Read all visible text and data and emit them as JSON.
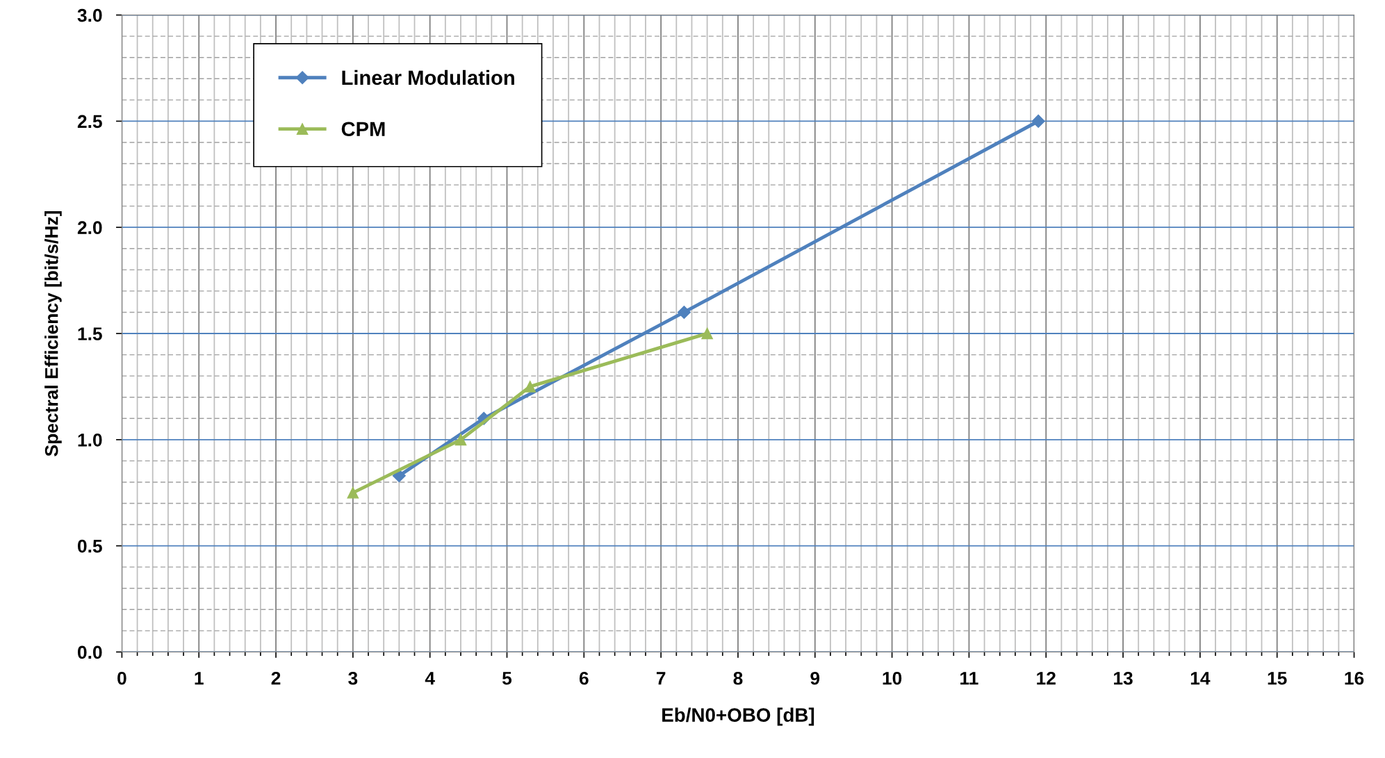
{
  "chart_data": {
    "type": "line",
    "xlabel": "Eb/N0+OBO [dB]",
    "ylabel": "Spectral Efficiency [bit/s/Hz]",
    "xlim": [
      0,
      16
    ],
    "xticks": [
      0,
      1,
      2,
      3,
      4,
      5,
      6,
      7,
      8,
      9,
      10,
      11,
      12,
      13,
      14,
      15,
      16
    ],
    "ylim": [
      0,
      3
    ],
    "yticks": [
      {
        "value": 0,
        "label": "0.0"
      },
      {
        "value": 0.5,
        "label": "0.5"
      },
      {
        "value": 1,
        "label": "1.0"
      },
      {
        "value": 1.5,
        "label": "1.5"
      },
      {
        "value": 2,
        "label": "2.0"
      },
      {
        "value": 2.5,
        "label": "2.5"
      },
      {
        "value": 3,
        "label": "3.0"
      }
    ],
    "grid": true,
    "legend": "top left",
    "series": [
      {
        "name": "Linear Modulation",
        "color": "#4f81bd",
        "marker": "diamond",
        "x": [
          3.6,
          4.7,
          7.3,
          11.9
        ],
        "values": [
          0.83,
          1.1,
          1.6,
          2.5
        ]
      },
      {
        "name": "CPM",
        "color": "#9bbb59",
        "marker": "triangle",
        "x": [
          3.0,
          4.4,
          5.3,
          7.6
        ],
        "values": [
          0.75,
          1.0,
          1.25,
          1.5
        ]
      }
    ]
  }
}
